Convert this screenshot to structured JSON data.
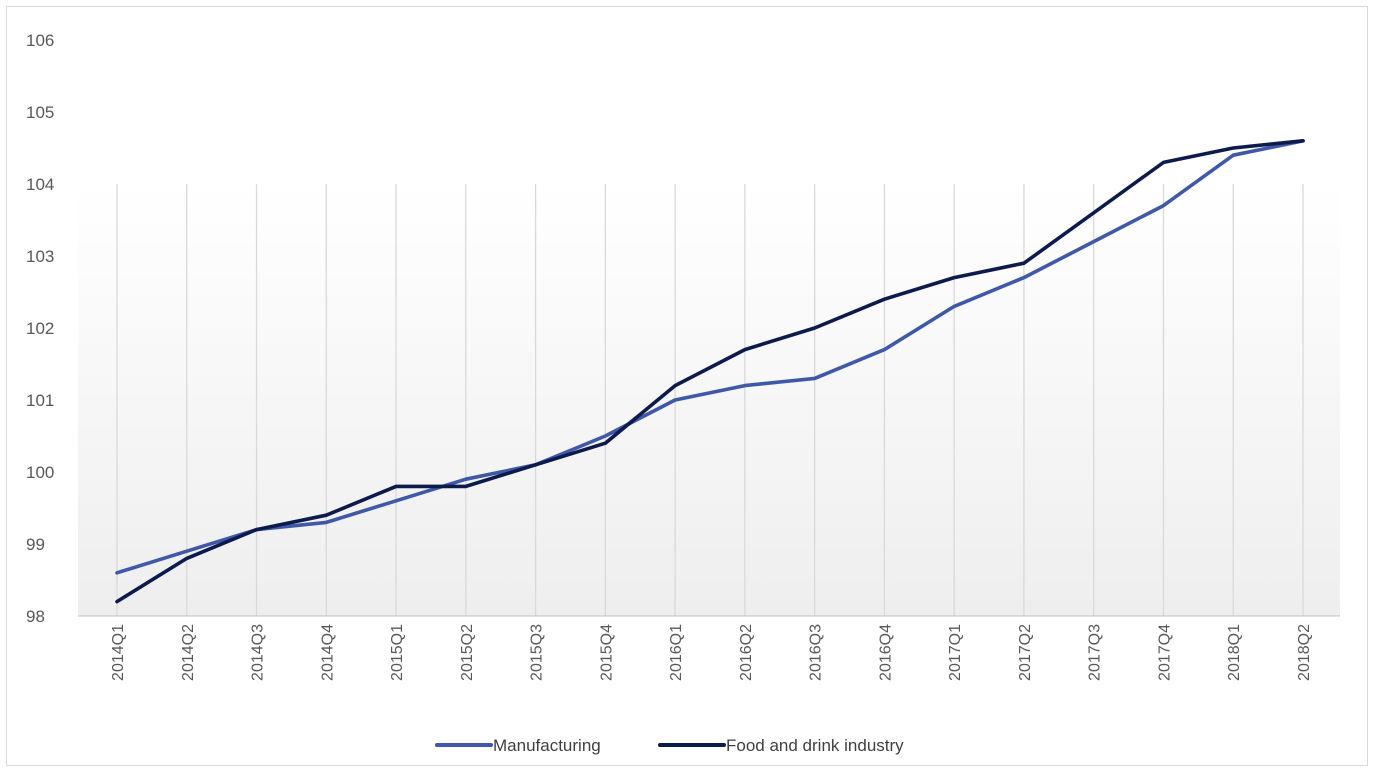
{
  "chart_data": {
    "type": "line",
    "title": "",
    "xlabel": "",
    "ylabel": "",
    "ylim": [
      98,
      106
    ],
    "yticks": [
      98,
      99,
      100,
      101,
      102,
      103,
      104,
      105,
      106
    ],
    "grid": "vertical",
    "legend_position": "bottom",
    "categories": [
      "2014Q1",
      "2014Q2",
      "2014Q3",
      "2014Q4",
      "2015Q1",
      "2015Q2",
      "2015Q3",
      "2015Q4",
      "2016Q1",
      "2016Q2",
      "2016Q3",
      "2016Q4",
      "2017Q1",
      "2017Q2",
      "2017Q3",
      "2017Q4",
      "2018Q1",
      "2018Q2"
    ],
    "series": [
      {
        "name": "Manufacturing",
        "color": "#3f58a8",
        "values": [
          98.6,
          98.9,
          99.2,
          99.3,
          99.6,
          99.9,
          100.1,
          100.5,
          101.0,
          101.2,
          101.3,
          101.7,
          102.3,
          102.7,
          103.2,
          103.7,
          104.4,
          104.6
        ]
      },
      {
        "name": "Food and drink industry",
        "color": "#0d1b4c",
        "values": [
          98.2,
          98.8,
          99.2,
          99.4,
          99.8,
          99.8,
          100.1,
          100.4,
          101.2,
          101.7,
          102.0,
          102.4,
          102.7,
          102.9,
          103.6,
          104.3,
          104.5,
          104.6
        ]
      }
    ]
  }
}
